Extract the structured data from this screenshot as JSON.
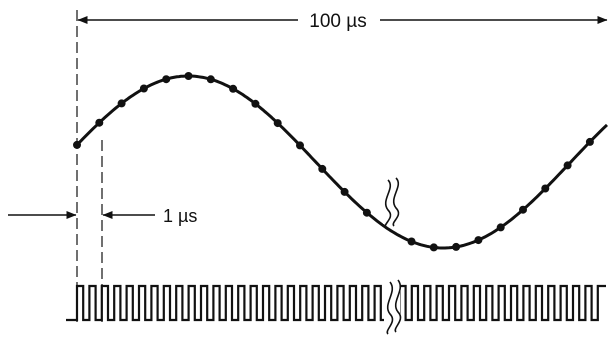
{
  "diagram": {
    "period_label": "100 µs",
    "sample_interval_label": "1 µs",
    "colors": {
      "ink": "#111111",
      "background": "#ffffff"
    }
  }
}
